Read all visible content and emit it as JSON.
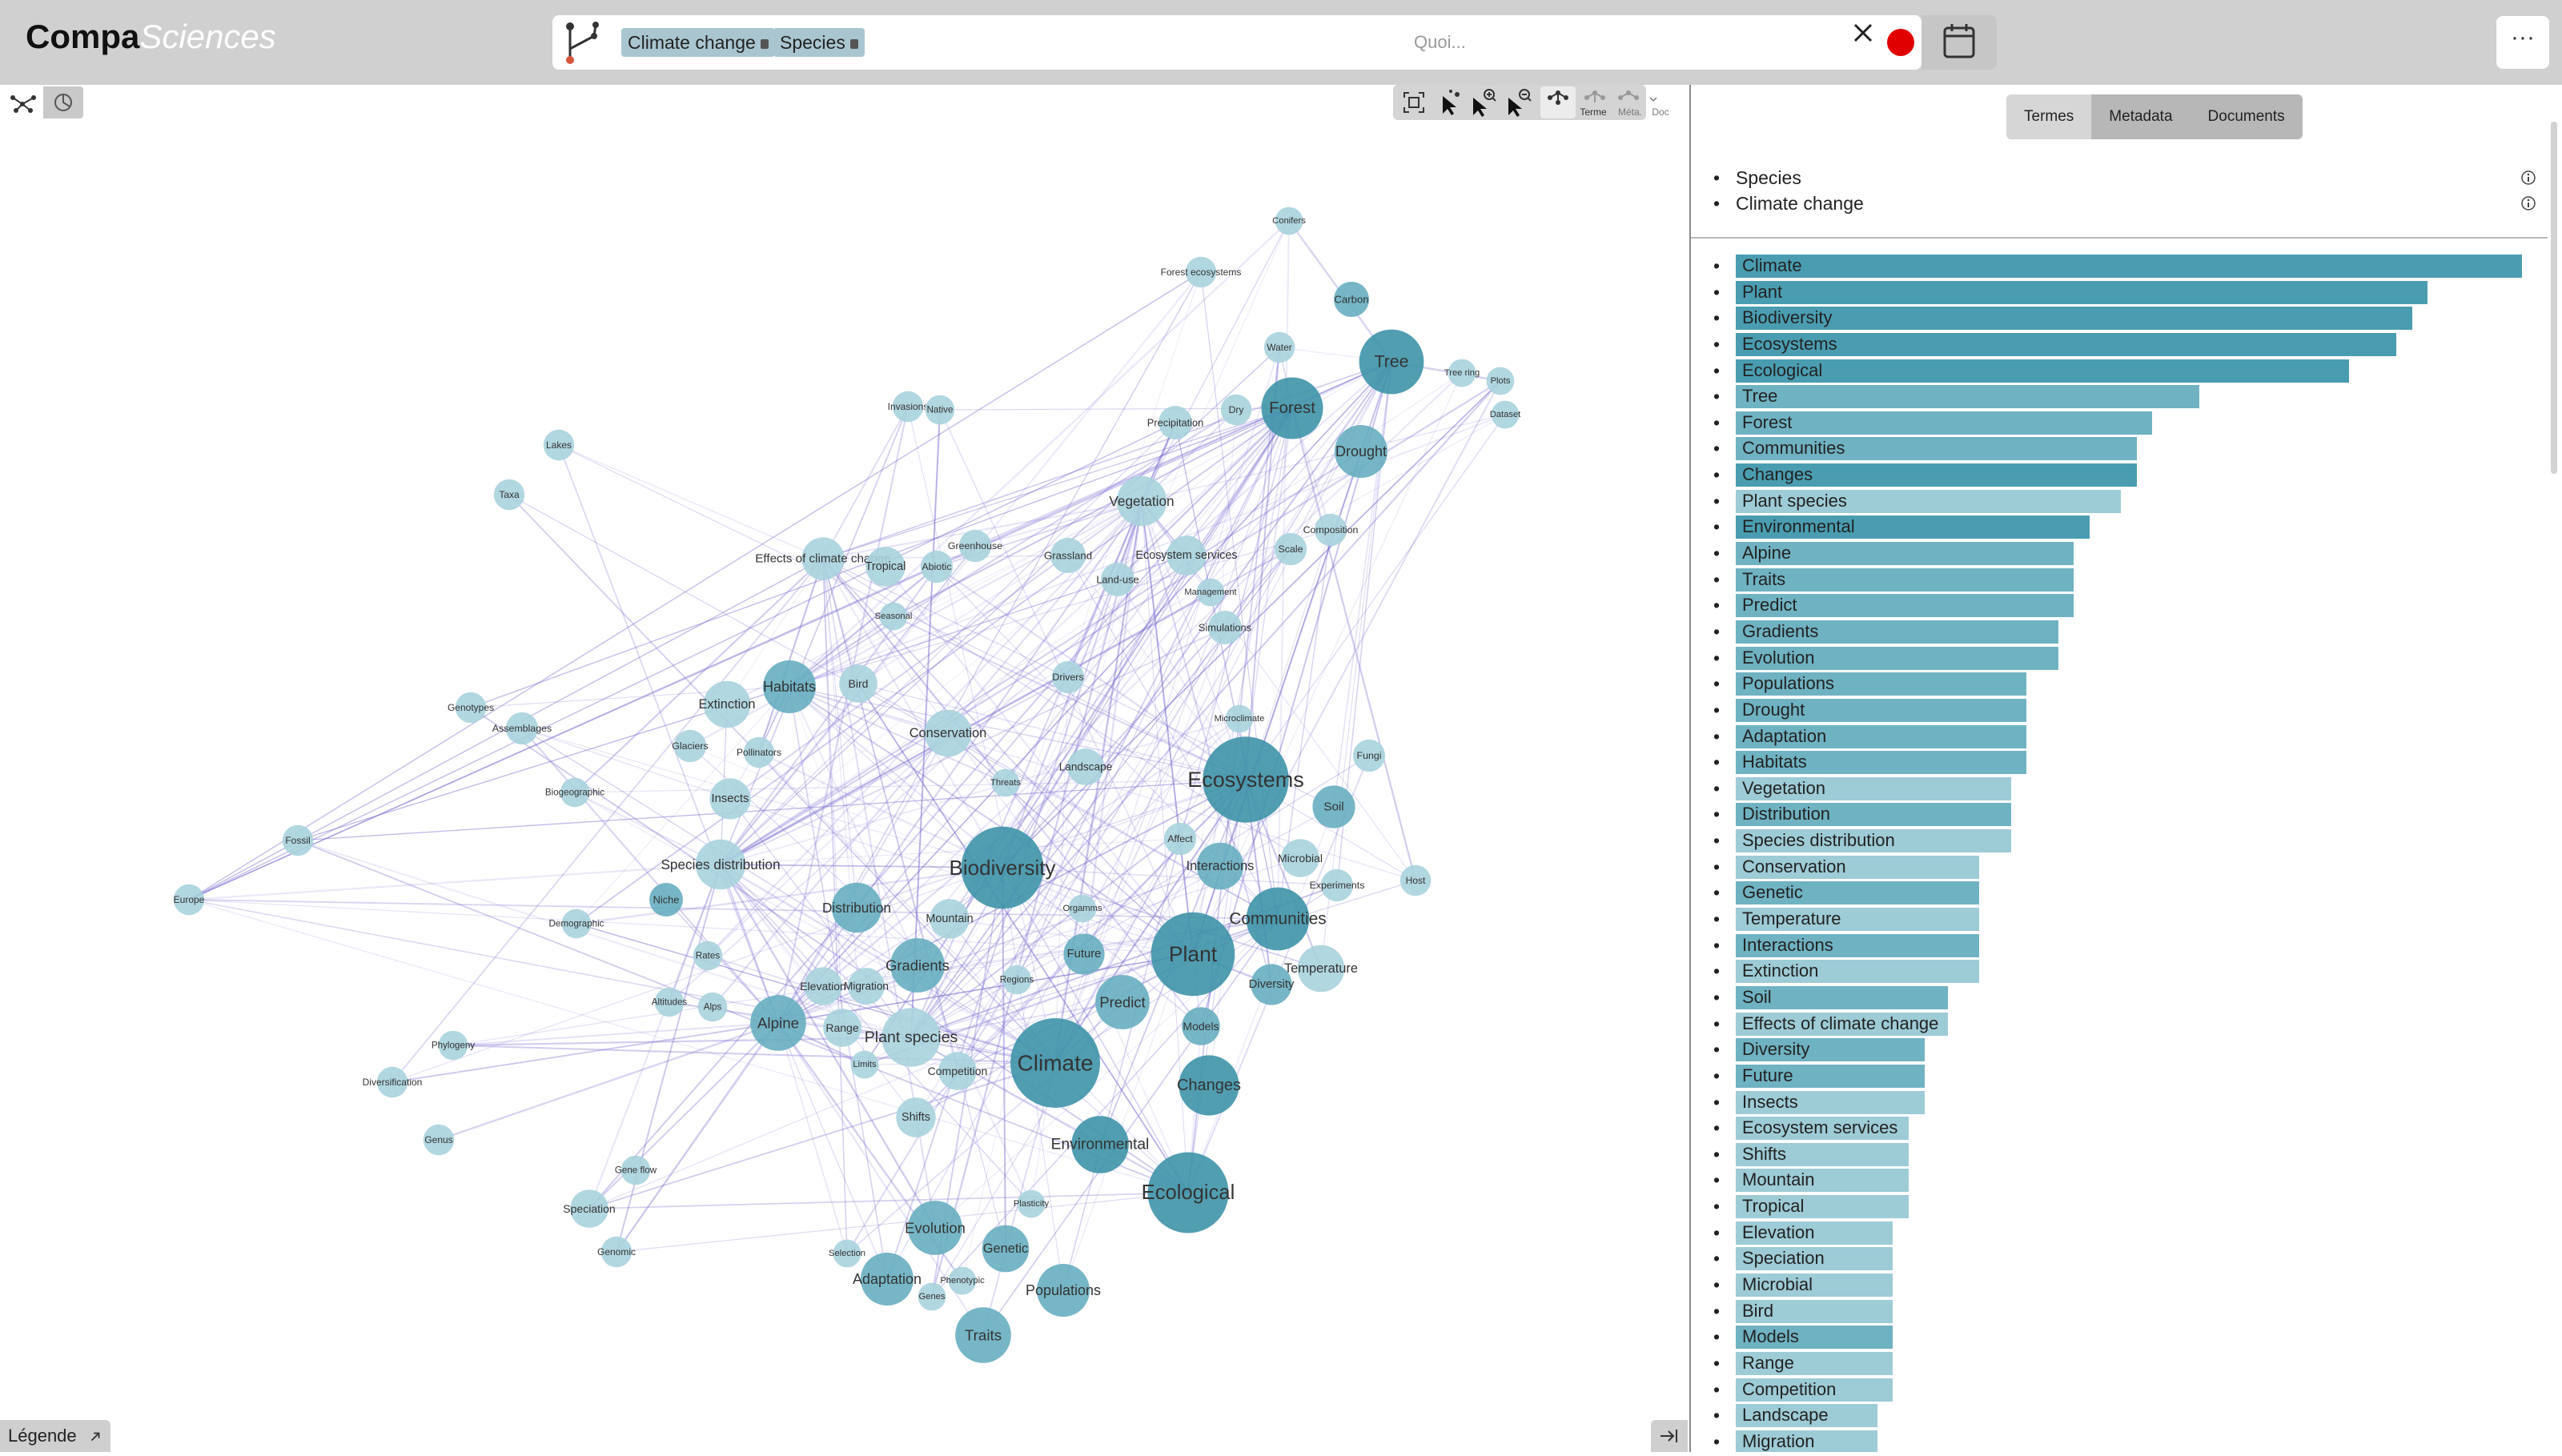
{
  "app": {
    "logo_part1": "Compa",
    "logo_part2": "Sciences"
  },
  "search": {
    "tags": [
      "Climate change",
      "Species"
    ],
    "placeholder": "Quoi...",
    "clear_icon": "close-icon",
    "status_color": "#e00000",
    "calendar_icon": "calendar-icon"
  },
  "menu_label": "···",
  "view_buttons": [
    "graph-view-icon",
    "stats-view-icon"
  ],
  "toolbar": {
    "terms_label": "Terme",
    "meta_label": "Méta.",
    "doc_label": "Doc"
  },
  "legend": {
    "label": "Légende"
  },
  "panel": {
    "tabs": [
      {
        "label": "Termes",
        "active": true
      },
      {
        "label": "Metadata"
      },
      {
        "label": "Documents"
      }
    ],
    "query_terms": [
      "Species",
      "Climate change"
    ]
  },
  "colors": {
    "bar_dark": "#4a9db1",
    "bar_mid": "#6fb2c2",
    "bar_light": "#9dcbd6",
    "node_dark": "#3e93a8",
    "node_mid": "#67aec0",
    "node_light": "#a8d3dd",
    "edge": "#7b6fd1"
  },
  "terms": [
    {
      "label": "Climate",
      "value": 1.0,
      "shade": "dark"
    },
    {
      "label": "Plant",
      "value": 0.88,
      "shade": "dark"
    },
    {
      "label": "Biodiversity",
      "value": 0.86,
      "shade": "dark"
    },
    {
      "label": "Ecosystems",
      "value": 0.84,
      "shade": "dark"
    },
    {
      "label": "Ecological",
      "value": 0.78,
      "shade": "dark"
    },
    {
      "label": "Tree",
      "value": 0.59,
      "shade": "mid"
    },
    {
      "label": "Forest",
      "value": 0.53,
      "shade": "mid"
    },
    {
      "label": "Communities",
      "value": 0.51,
      "shade": "mid"
    },
    {
      "label": "Changes",
      "value": 0.51,
      "shade": "dark"
    },
    {
      "label": "Plant species",
      "value": 0.49,
      "shade": "light"
    },
    {
      "label": "Environmental",
      "value": 0.45,
      "shade": "dark"
    },
    {
      "label": "Alpine",
      "value": 0.43,
      "shade": "mid"
    },
    {
      "label": "Traits",
      "value": 0.43,
      "shade": "mid"
    },
    {
      "label": "Predict",
      "value": 0.43,
      "shade": "mid"
    },
    {
      "label": "Gradients",
      "value": 0.41,
      "shade": "mid"
    },
    {
      "label": "Evolution",
      "value": 0.41,
      "shade": "mid"
    },
    {
      "label": "Populations",
      "value": 0.37,
      "shade": "mid"
    },
    {
      "label": "Drought",
      "value": 0.37,
      "shade": "mid"
    },
    {
      "label": "Adaptation",
      "value": 0.37,
      "shade": "mid"
    },
    {
      "label": "Habitats",
      "value": 0.37,
      "shade": "mid"
    },
    {
      "label": "Vegetation",
      "value": 0.35,
      "shade": "light"
    },
    {
      "label": "Distribution",
      "value": 0.35,
      "shade": "mid"
    },
    {
      "label": "Species distribution",
      "value": 0.35,
      "shade": "light"
    },
    {
      "label": "Conservation",
      "value": 0.31,
      "shade": "light"
    },
    {
      "label": "Genetic",
      "value": 0.31,
      "shade": "mid"
    },
    {
      "label": "Temperature",
      "value": 0.31,
      "shade": "light"
    },
    {
      "label": "Interactions",
      "value": 0.31,
      "shade": "mid"
    },
    {
      "label": "Extinction",
      "value": 0.31,
      "shade": "light"
    },
    {
      "label": "Soil",
      "value": 0.27,
      "shade": "mid"
    },
    {
      "label": "Effects of climate change",
      "value": 0.27,
      "shade": "light"
    },
    {
      "label": "Diversity",
      "value": 0.24,
      "shade": "mid"
    },
    {
      "label": "Future",
      "value": 0.24,
      "shade": "mid"
    },
    {
      "label": "Insects",
      "value": 0.24,
      "shade": "light"
    },
    {
      "label": "Ecosystem services",
      "value": 0.22,
      "shade": "light"
    },
    {
      "label": "Shifts",
      "value": 0.22,
      "shade": "light"
    },
    {
      "label": "Mountain",
      "value": 0.22,
      "shade": "light"
    },
    {
      "label": "Tropical",
      "value": 0.22,
      "shade": "light"
    },
    {
      "label": "Elevation",
      "value": 0.2,
      "shade": "light"
    },
    {
      "label": "Speciation",
      "value": 0.2,
      "shade": "light"
    },
    {
      "label": "Microbial",
      "value": 0.2,
      "shade": "light"
    },
    {
      "label": "Bird",
      "value": 0.2,
      "shade": "light"
    },
    {
      "label": "Models",
      "value": 0.2,
      "shade": "mid"
    },
    {
      "label": "Range",
      "value": 0.2,
      "shade": "light"
    },
    {
      "label": "Competition",
      "value": 0.2,
      "shade": "light"
    },
    {
      "label": "Landscape",
      "value": 0.18,
      "shade": "light"
    },
    {
      "label": "Migration",
      "value": 0.18,
      "shade": "light"
    }
  ],
  "graph": {
    "nodes": [
      {
        "label": "Climate",
        "weight": 1.0,
        "shade": "dark"
      },
      {
        "label": "Ecosystems",
        "weight": 0.95,
        "shade": "dark"
      },
      {
        "label": "Plant",
        "weight": 0.92,
        "shade": "dark"
      },
      {
        "label": "Biodiversity",
        "weight": 0.9,
        "shade": "dark"
      },
      {
        "label": "Ecological",
        "weight": 0.88,
        "shade": "dark"
      },
      {
        "label": "Tree",
        "weight": 0.66,
        "shade": "dark"
      },
      {
        "label": "Communities",
        "weight": 0.64,
        "shade": "dark"
      },
      {
        "label": "Forest",
        "weight": 0.62,
        "shade": "dark"
      },
      {
        "label": "Changes",
        "weight": 0.6,
        "shade": "dark"
      },
      {
        "label": "Plant species",
        "weight": 0.58,
        "shade": "light"
      },
      {
        "label": "Environmental",
        "weight": 0.56,
        "shade": "dark"
      },
      {
        "label": "Alpine",
        "weight": 0.54,
        "shade": "mid"
      },
      {
        "label": "Traits",
        "weight": 0.54,
        "shade": "mid"
      },
      {
        "label": "Predict",
        "weight": 0.52,
        "shade": "mid"
      },
      {
        "label": "Gradients",
        "weight": 0.52,
        "shade": "mid"
      },
      {
        "label": "Evolution",
        "weight": 0.52,
        "shade": "mid"
      },
      {
        "label": "Populations",
        "weight": 0.5,
        "shade": "mid"
      },
      {
        "label": "Drought",
        "weight": 0.5,
        "shade": "mid"
      },
      {
        "label": "Adaptation",
        "weight": 0.5,
        "shade": "mid"
      },
      {
        "label": "Habitats",
        "weight": 0.5,
        "shade": "mid"
      },
      {
        "label": "Vegetation",
        "weight": 0.46,
        "shade": "light"
      },
      {
        "label": "Distribution",
        "weight": 0.46,
        "shade": "mid"
      },
      {
        "label": "Species distribution",
        "weight": 0.46,
        "shade": "light"
      },
      {
        "label": "Conservation",
        "weight": 0.42,
        "shade": "light"
      },
      {
        "label": "Genetic",
        "weight": 0.42,
        "shade": "mid"
      },
      {
        "label": "Temperature",
        "weight": 0.42,
        "shade": "light"
      },
      {
        "label": "Interactions",
        "weight": 0.42,
        "shade": "mid"
      },
      {
        "label": "Extinction",
        "weight": 0.42,
        "shade": "light"
      },
      {
        "label": "Soil",
        "weight": 0.36,
        "shade": "mid"
      },
      {
        "label": "Effects of climate change",
        "weight": 0.36,
        "shade": "light"
      },
      {
        "label": "Diversity",
        "weight": 0.34,
        "shade": "mid"
      },
      {
        "label": "Future",
        "weight": 0.34,
        "shade": "mid"
      },
      {
        "label": "Insects",
        "weight": 0.34,
        "shade": "light"
      },
      {
        "label": "Ecosystem services",
        "weight": 0.32,
        "shade": "light"
      },
      {
        "label": "Shifts",
        "weight": 0.32,
        "shade": "light"
      },
      {
        "label": "Mountain",
        "weight": 0.32,
        "shade": "light"
      },
      {
        "label": "Tropical",
        "weight": 0.32,
        "shade": "light"
      },
      {
        "label": "Elevation",
        "weight": 0.3,
        "shade": "light"
      },
      {
        "label": "Speciation",
        "weight": 0.3,
        "shade": "light"
      },
      {
        "label": "Microbial",
        "weight": 0.3,
        "shade": "light"
      },
      {
        "label": "Bird",
        "weight": 0.3,
        "shade": "light"
      },
      {
        "label": "Models",
        "weight": 0.3,
        "shade": "mid"
      },
      {
        "label": "Range",
        "weight": 0.3,
        "shade": "light"
      },
      {
        "label": "Competition",
        "weight": 0.3,
        "shade": "light"
      },
      {
        "label": "Landscape",
        "weight": 0.28,
        "shade": "light"
      },
      {
        "label": "Migration",
        "weight": 0.28,
        "shade": "light"
      },
      {
        "label": "Carbon",
        "weight": 0.26,
        "shade": "mid"
      },
      {
        "label": "Vegetation",
        "weight": 0.0,
        "shade": "light",
        "hidden": true
      },
      {
        "label": "Grassland",
        "weight": 0.26,
        "shade": "light"
      },
      {
        "label": "Land-use",
        "weight": 0.24,
        "shade": "light"
      },
      {
        "label": "Niche",
        "weight": 0.24,
        "shade": "mid"
      },
      {
        "label": "Precipitation",
        "weight": 0.24,
        "shade": "light"
      },
      {
        "label": "Simulations",
        "weight": 0.24,
        "shade": "light"
      },
      {
        "label": "Glaciers",
        "weight": 0.22,
        "shade": "light"
      },
      {
        "label": "Abiotic",
        "weight": 0.22,
        "shade": "light"
      },
      {
        "label": "Greenhouse",
        "weight": 0.22,
        "shade": "light"
      },
      {
        "label": "Drivers",
        "weight": 0.22,
        "shade": "light"
      },
      {
        "label": "Affect",
        "weight": 0.22,
        "shade": "light"
      },
      {
        "label": "Scale",
        "weight": 0.22,
        "shade": "light"
      },
      {
        "label": "Composition",
        "weight": 0.22,
        "shade": "light"
      },
      {
        "label": "Fungi",
        "weight": 0.22,
        "shade": "light"
      },
      {
        "label": "Experiments",
        "weight": 0.22,
        "shade": "light"
      },
      {
        "label": "Host",
        "weight": 0.2,
        "shade": "light"
      },
      {
        "label": "Water",
        "weight": 0.2,
        "shade": "light"
      },
      {
        "label": "Dry",
        "weight": 0.2,
        "shade": "light"
      },
      {
        "label": "Forest ecosystems",
        "weight": 0.2,
        "shade": "light"
      },
      {
        "label": "Pollinators",
        "weight": 0.2,
        "shade": "light"
      },
      {
        "label": "Assemblages",
        "weight": 0.22,
        "shade": "light"
      },
      {
        "label": "Genotypes",
        "weight": 0.2,
        "shade": "light"
      },
      {
        "label": "Lakes",
        "weight": 0.2,
        "shade": "light"
      },
      {
        "label": "Taxa",
        "weight": 0.2,
        "shade": "light"
      },
      {
        "label": "Fossil",
        "weight": 0.2,
        "shade": "light"
      },
      {
        "label": "Europe",
        "weight": 0.2,
        "shade": "light"
      },
      {
        "label": "Invasions",
        "weight": 0.2,
        "shade": "light"
      },
      {
        "label": "Native",
        "weight": 0.18,
        "shade": "light"
      },
      {
        "label": "Rates",
        "weight": 0.18,
        "shade": "light"
      },
      {
        "label": "Alps",
        "weight": 0.18,
        "shade": "light"
      },
      {
        "label": "Altitudes",
        "weight": 0.18,
        "shade": "light"
      },
      {
        "label": "Gene flow",
        "weight": 0.18,
        "shade": "light"
      },
      {
        "label": "Genus",
        "weight": 0.2,
        "shade": "light"
      },
      {
        "label": "Diversification",
        "weight": 0.2,
        "shade": "light"
      },
      {
        "label": "Genomic",
        "weight": 0.2,
        "shade": "light"
      },
      {
        "label": "Phylogeny",
        "weight": 0.18,
        "shade": "light"
      },
      {
        "label": "Demographic",
        "weight": 0.18,
        "shade": "light"
      },
      {
        "label": "Biogeographic",
        "weight": 0.18,
        "shade": "light"
      },
      {
        "label": "Regions",
        "weight": 0.18,
        "shade": "light"
      },
      {
        "label": "Limits",
        "weight": 0.16,
        "shade": "light"
      },
      {
        "label": "Plasticity",
        "weight": 0.16,
        "shade": "light"
      },
      {
        "label": "Genes",
        "weight": 0.16,
        "shade": "light"
      },
      {
        "label": "Phenotypic",
        "weight": 0.16,
        "shade": "light"
      },
      {
        "label": "Selection",
        "weight": 0.16,
        "shade": "light"
      },
      {
        "label": "Seasonal",
        "weight": 0.16,
        "shade": "light"
      },
      {
        "label": "Microclimate",
        "weight": 0.16,
        "shade": "light"
      },
      {
        "label": "Management",
        "weight": 0.16,
        "shade": "light"
      },
      {
        "label": "Dataset",
        "weight": 0.16,
        "shade": "light"
      },
      {
        "label": "Tree ring",
        "weight": 0.16,
        "shade": "light"
      },
      {
        "label": "Plots",
        "weight": 0.16,
        "shade": "light"
      },
      {
        "label": "Conifers",
        "weight": 0.16,
        "shade": "light"
      },
      {
        "label": "Threats",
        "weight": 0.16,
        "shade": "light"
      },
      {
        "label": "Orgamms",
        "weight": 0.16,
        "shade": "light"
      }
    ]
  }
}
